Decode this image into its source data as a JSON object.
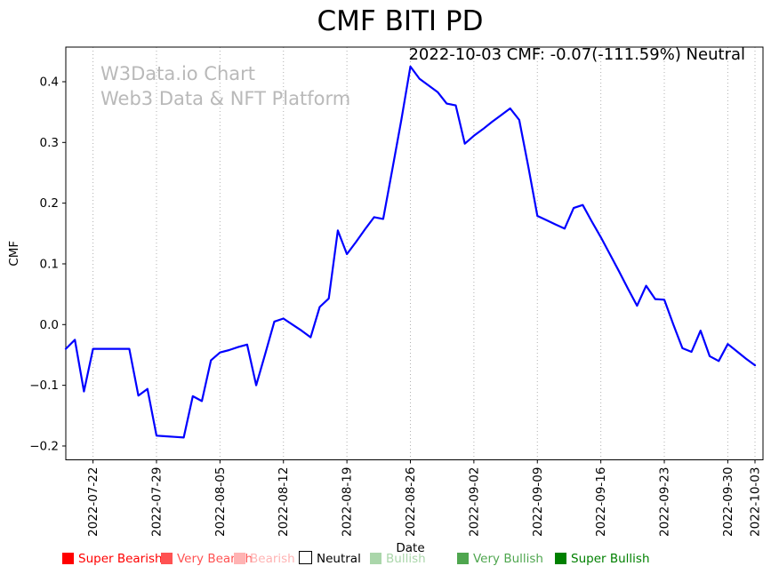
{
  "title": "CMF BITI PD",
  "annotation": "2022-10-03 CMF: -0.07(-111.59%) Neutral",
  "watermark": {
    "line1": "W3Data.io Chart",
    "line2": "Web3 Data & NFT Platform"
  },
  "colors": {
    "line": "#0000ff",
    "grid": "#b0b0b0",
    "axis": "#000000",
    "watermark": "#b9b9b9"
  },
  "chart_data": {
    "type": "line",
    "title": "CMF BITI PD",
    "xlabel": "Date",
    "ylabel": "CMF",
    "ylim": [
      -0.223,
      0.457
    ],
    "grid": "vertical-dotted",
    "legend_position": "bottom",
    "y_ticks": [
      {
        "label": "0.4",
        "value": 0.4
      },
      {
        "label": "0.3",
        "value": 0.3
      },
      {
        "label": "0.2",
        "value": 0.2
      },
      {
        "label": "0.1",
        "value": 0.1
      },
      {
        "label": "0.0",
        "value": 0.0
      },
      {
        "label": "−0.1",
        "value": -0.1
      },
      {
        "label": "−0.2",
        "value": -0.2
      }
    ],
    "x_ticks": [
      {
        "label": "2022-07-22",
        "index": 3
      },
      {
        "label": "2022-07-29",
        "index": 10
      },
      {
        "label": "2022-08-05",
        "index": 17
      },
      {
        "label": "2022-08-12",
        "index": 24
      },
      {
        "label": "2022-08-19",
        "index": 31
      },
      {
        "label": "2022-08-26",
        "index": 38
      },
      {
        "label": "2022-09-02",
        "index": 45
      },
      {
        "label": "2022-09-09",
        "index": 52
      },
      {
        "label": "2022-09-16",
        "index": 59
      },
      {
        "label": "2022-09-23",
        "index": 66
      },
      {
        "label": "2022-09-30",
        "index": 73
      },
      {
        "label": "2022-10-03",
        "index": 76
      }
    ],
    "series": [
      {
        "name": "CMF",
        "color": "#0000ff",
        "x": [
          "2022-07-19",
          "2022-07-20",
          "2022-07-21",
          "2022-07-22",
          "2022-07-23",
          "2022-07-24",
          "2022-07-25",
          "2022-07-26",
          "2022-07-27",
          "2022-07-28",
          "2022-07-29",
          "2022-07-30",
          "2022-07-31",
          "2022-08-01",
          "2022-08-02",
          "2022-08-03",
          "2022-08-04",
          "2022-08-05",
          "2022-08-06",
          "2022-08-07",
          "2022-08-08",
          "2022-08-09",
          "2022-08-10",
          "2022-08-11",
          "2022-08-12",
          "2022-08-13",
          "2022-08-14",
          "2022-08-15",
          "2022-08-16",
          "2022-08-17",
          "2022-08-18",
          "2022-08-19",
          "2022-08-20",
          "2022-08-21",
          "2022-08-22",
          "2022-08-23",
          "2022-08-24",
          "2022-08-25",
          "2022-08-26",
          "2022-08-27",
          "2022-08-28",
          "2022-08-29",
          "2022-08-30",
          "2022-08-31",
          "2022-09-01",
          "2022-09-02",
          "2022-09-03",
          "2022-09-04",
          "2022-09-05",
          "2022-09-06",
          "2022-09-07",
          "2022-09-08",
          "2022-09-09",
          "2022-09-10",
          "2022-09-11",
          "2022-09-12",
          "2022-09-13",
          "2022-09-14",
          "2022-09-15",
          "2022-09-16",
          "2022-09-17",
          "2022-09-18",
          "2022-09-19",
          "2022-09-20",
          "2022-09-21",
          "2022-09-22",
          "2022-09-23",
          "2022-09-24",
          "2022-09-25",
          "2022-09-26",
          "2022-09-27",
          "2022-09-28",
          "2022-09-29",
          "2022-09-30",
          "2022-10-01",
          "2022-10-02",
          "2022-10-03"
        ],
        "values": [
          -0.04,
          -0.025,
          -0.11,
          -0.04,
          -0.04,
          -0.04,
          -0.04,
          -0.04,
          -0.117,
          -0.106,
          -0.183,
          -0.184,
          -0.185,
          -0.186,
          -0.118,
          -0.126,
          -0.059,
          -0.046,
          -0.042,
          -0.037,
          -0.033,
          -0.1,
          -0.048,
          0.005,
          0.01,
          0.0,
          -0.01,
          -0.021,
          0.029,
          0.043,
          0.155,
          0.116,
          0.136,
          0.157,
          0.177,
          0.174,
          0.255,
          0.337,
          0.425,
          0.405,
          0.394,
          0.383,
          0.364,
          0.361,
          0.298,
          0.311,
          0.322,
          0.334,
          0.345,
          0.356,
          0.337,
          0.26,
          0.179,
          0.172,
          0.165,
          0.158,
          0.192,
          0.197,
          0.17,
          0.144,
          0.116,
          0.088,
          0.059,
          0.031,
          0.064,
          0.042,
          0.041,
          0.0,
          -0.039,
          -0.045,
          -0.01,
          -0.052,
          -0.06,
          -0.032,
          -0.044,
          -0.056,
          -0.067
        ]
      }
    ]
  },
  "legend": {
    "items": [
      {
        "label": "Super Bearish",
        "color": "#ff0000",
        "text_color": "#ff0000"
      },
      {
        "label": "Very Bearish",
        "color": "#ff5252",
        "text_color": "#ff5252"
      },
      {
        "label": "Bearish",
        "color": "#ffb3b3",
        "text_color": "#ffb3b3"
      },
      {
        "label": "Neutral",
        "color": "#ffffff",
        "text_color": "#000000",
        "border": "#000000"
      },
      {
        "label": "Bullish",
        "color": "#aad6aa",
        "text_color": "#aad6aa"
      },
      {
        "label": "Very Bullish",
        "color": "#4fa64f",
        "text_color": "#4fa64f"
      },
      {
        "label": "Super Bullish",
        "color": "#008000",
        "text_color": "#008000"
      }
    ]
  }
}
